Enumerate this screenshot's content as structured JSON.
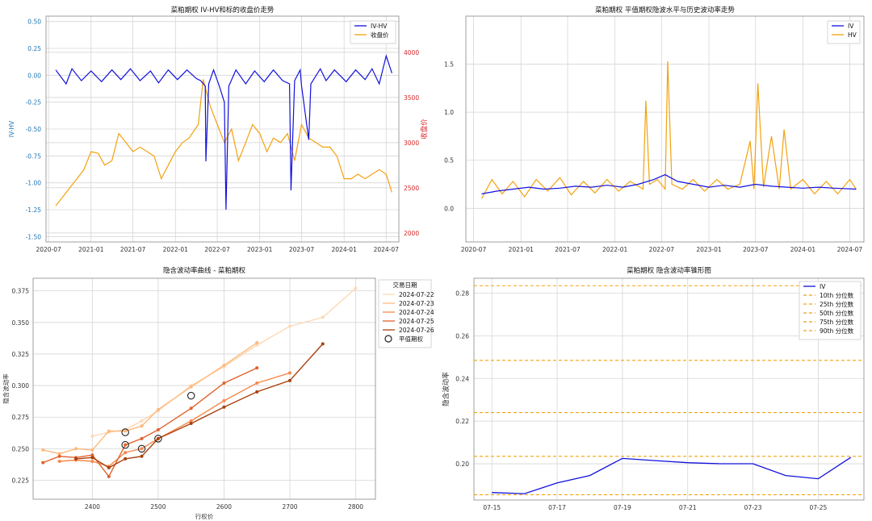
{
  "chart_data": [
    {
      "id": "iv_hv_close",
      "type": "line",
      "title": "菜粕期权 IV-HV和标的收盘价走势",
      "xlabel": "",
      "ylabel": "IV-HV",
      "ylabel_right": "收盘价",
      "x_ticks": [
        "2020-07",
        "2021-01",
        "2021-07",
        "2022-01",
        "2022-07",
        "2023-01",
        "2023-07",
        "2024-01",
        "2024-07"
      ],
      "y_ticks_left": [
        "0.50",
        "0.25",
        "0.00",
        "-0.25",
        "-0.50",
        "-0.75",
        "-1.00",
        "-1.25",
        "-1.50"
      ],
      "y_ticks_right": [
        "4000",
        "3500",
        "3000",
        "2500",
        "2000"
      ],
      "ylim_left": [
        -1.55,
        0.55
      ],
      "ylim_right": [
        1900,
        4400
      ],
      "grid": true,
      "legend": "top-right",
      "colors": {
        "left_axis": "#1f77b4",
        "right_axis": "#d62728"
      },
      "series": [
        {
          "name": "IV-HV",
          "axis": "left",
          "color": "#1111dd",
          "x": [
            "2020-08-01",
            "2020-09-15",
            "2020-10-10",
            "2020-11-20",
            "2021-01-01",
            "2021-02-15",
            "2021-04-01",
            "2021-05-10",
            "2021-06-20",
            "2021-08-01",
            "2021-09-15",
            "2021-10-20",
            "2021-12-01",
            "2022-01-10",
            "2022-02-20",
            "2022-04-01",
            "2022-04-20",
            "2022-05-10",
            "2022-05-13",
            "2022-05-25",
            "2022-06-15",
            "2022-07-10",
            "2022-08-01",
            "2022-08-08",
            "2022-08-20",
            "2022-09-20",
            "2022-11-01",
            "2022-12-10",
            "2023-01-20",
            "2023-03-01",
            "2023-04-10",
            "2023-05-10",
            "2023-05-16",
            "2023-06-01",
            "2023-06-25",
            "2023-07-01",
            "2023-08-01",
            "2023-08-10",
            "2023-09-20",
            "2023-10-15",
            "2023-11-20",
            "2024-01-10",
            "2024-02-20",
            "2024-04-01",
            "2024-05-01",
            "2024-06-01",
            "2024-07-01",
            "2024-07-26"
          ],
          "values": [
            0.05,
            -0.08,
            0.06,
            -0.05,
            0.04,
            -0.06,
            0.05,
            -0.04,
            0.06,
            -0.05,
            0.04,
            -0.07,
            0.05,
            -0.04,
            0.05,
            -0.03,
            -0.05,
            -0.1,
            -0.8,
            -0.08,
            0.05,
            -0.1,
            -0.25,
            -1.25,
            -0.1,
            0.05,
            -0.08,
            0.04,
            -0.06,
            0.05,
            -0.05,
            -0.08,
            -1.07,
            -0.05,
            0.05,
            -0.1,
            -0.6,
            -0.08,
            0.06,
            -0.05,
            0.05,
            -0.06,
            0.05,
            -0.04,
            0.06,
            -0.08,
            0.18,
            0.02
          ]
        },
        {
          "name": "收盘价",
          "axis": "right",
          "color": "#f2a20f",
          "x": [
            "2020-08-01",
            "2020-09-01",
            "2020-10-01",
            "2020-11-01",
            "2020-12-01",
            "2021-01-01",
            "2021-02-01",
            "2021-03-01",
            "2021-04-01",
            "2021-05-01",
            "2021-06-01",
            "2021-07-01",
            "2021-08-01",
            "2021-09-01",
            "2021-10-01",
            "2021-11-01",
            "2021-12-01",
            "2022-01-01",
            "2022-02-01",
            "2022-03-01",
            "2022-04-10",
            "2022-05-01",
            "2022-06-01",
            "2022-07-01",
            "2022-08-01",
            "2022-09-01",
            "2022-10-01",
            "2022-11-01",
            "2022-12-01",
            "2023-01-01",
            "2023-02-01",
            "2023-03-01",
            "2023-04-01",
            "2023-05-01",
            "2023-06-01",
            "2023-07-01",
            "2023-08-01",
            "2023-09-01",
            "2023-10-01",
            "2023-11-01",
            "2023-12-01",
            "2024-01-01",
            "2024-02-01",
            "2024-03-01",
            "2024-04-01",
            "2024-05-01",
            "2024-06-01",
            "2024-07-01",
            "2024-07-26"
          ],
          "values": [
            2300,
            2400,
            2500,
            2600,
            2700,
            2900,
            2880,
            2750,
            2800,
            3100,
            3000,
            2900,
            2950,
            2900,
            2850,
            2600,
            2750,
            2900,
            3000,
            3050,
            3200,
            3700,
            3400,
            3200,
            3000,
            3150,
            2800,
            3000,
            3200,
            3100,
            2900,
            3050,
            3000,
            3100,
            2800,
            3200,
            3050,
            3000,
            2950,
            2950,
            2850,
            2600,
            2600,
            2650,
            2600,
            2650,
            2700,
            2650,
            2450
          ]
        }
      ]
    },
    {
      "id": "atm_iv_hv",
      "type": "line",
      "title": "菜粕期权 平值期权隐波水平与历史波动率走势",
      "xlabel": "",
      "ylabel": "",
      "x_ticks": [
        "2020-07",
        "2021-01",
        "2021-07",
        "2022-01",
        "2022-07",
        "2023-01",
        "2023-07",
        "2024-01",
        "2024-07"
      ],
      "y_ticks": [
        "1.5",
        "1.0",
        "0.5",
        "0.0"
      ],
      "ylim": [
        -0.35,
        2.0
      ],
      "grid": true,
      "legend": "top-right",
      "series": [
        {
          "name": "IV",
          "color": "#1111dd",
          "x": [
            "2020-08-01",
            "2020-10-01",
            "2020-12-01",
            "2021-02-01",
            "2021-04-01",
            "2021-06-01",
            "2021-08-01",
            "2021-10-01",
            "2021-12-01",
            "2022-02-01",
            "2022-04-01",
            "2022-06-01",
            "2022-07-15",
            "2022-09-01",
            "2022-11-01",
            "2023-01-01",
            "2023-03-01",
            "2023-05-01",
            "2023-07-01",
            "2023-09-01",
            "2023-11-01",
            "2024-01-01",
            "2024-03-01",
            "2024-05-01",
            "2024-07-26"
          ],
          "values": [
            0.15,
            0.18,
            0.2,
            0.22,
            0.2,
            0.21,
            0.23,
            0.22,
            0.24,
            0.22,
            0.25,
            0.3,
            0.35,
            0.28,
            0.25,
            0.22,
            0.24,
            0.22,
            0.25,
            0.23,
            0.22,
            0.21,
            0.22,
            0.21,
            0.2
          ]
        },
        {
          "name": "HV",
          "color": "#f2a20f",
          "x": [
            "2020-08-01",
            "2020-09-10",
            "2020-10-20",
            "2020-12-01",
            "2021-01-15",
            "2021-03-01",
            "2021-04-15",
            "2021-06-01",
            "2021-07-15",
            "2021-09-01",
            "2021-10-15",
            "2021-12-01",
            "2022-01-15",
            "2022-03-01",
            "2022-04-20",
            "2022-05-01",
            "2022-05-15",
            "2022-06-15",
            "2022-07-15",
            "2022-07-25",
            "2022-08-10",
            "2022-09-20",
            "2022-11-01",
            "2022-12-15",
            "2023-02-01",
            "2023-03-15",
            "2023-05-01",
            "2023-06-10",
            "2023-06-25",
            "2023-07-10",
            "2023-08-01",
            "2023-09-01",
            "2023-10-01",
            "2023-10-20",
            "2023-11-15",
            "2024-01-01",
            "2024-02-15",
            "2024-04-01",
            "2024-05-15",
            "2024-07-01",
            "2024-07-26"
          ],
          "values": [
            0.1,
            0.3,
            0.15,
            0.28,
            0.12,
            0.3,
            0.18,
            0.32,
            0.14,
            0.28,
            0.16,
            0.3,
            0.18,
            0.28,
            0.2,
            1.12,
            0.25,
            0.3,
            0.2,
            1.53,
            0.25,
            0.2,
            0.3,
            0.18,
            0.3,
            0.2,
            0.25,
            0.7,
            0.2,
            1.3,
            0.22,
            0.75,
            0.2,
            0.82,
            0.2,
            0.3,
            0.15,
            0.28,
            0.15,
            0.3,
            0.2
          ]
        }
      ]
    },
    {
      "id": "iv_smile",
      "type": "line",
      "title": "隐含波动率曲线 - 菜粕期权",
      "xlabel": "行权价",
      "ylabel": "隐含波动率",
      "x_ticks": [
        "2400",
        "2500",
        "2600",
        "2700",
        "2800"
      ],
      "y_ticks": [
        "0.375",
        "0.350",
        "0.325",
        "0.300",
        "0.275",
        "0.250",
        "0.225"
      ],
      "xlim": [
        2310,
        2830
      ],
      "ylim": [
        0.21,
        0.385
      ],
      "grid": true,
      "legend": "right",
      "legend_title": "交易日期",
      "atm_marker_label": "平值期权",
      "x": [
        2325,
        2350,
        2375,
        2400,
        2425,
        2450,
        2475,
        2500,
        2550,
        2600,
        2650,
        2700,
        2750,
        2800
      ],
      "series": [
        {
          "name": "2024-07-22",
          "color": "#fdd9b5",
          "values": [
            null,
            null,
            null,
            0.26,
            0.263,
            0.265,
            0.272,
            0.28,
            0.3,
            0.315,
            0.332,
            0.347,
            0.354,
            0.377
          ]
        },
        {
          "name": "2024-07-23",
          "color": "#fdb97d",
          "values": [
            0.249,
            0.246,
            0.25,
            0.249,
            0.264,
            0.264,
            0.268,
            0.281,
            0.299,
            0.316,
            0.334,
            null,
            null,
            null
          ]
        },
        {
          "name": "2024-07-24",
          "color": "#f5884a",
          "values": [
            null,
            0.24,
            0.241,
            0.24,
            0.236,
            0.247,
            0.25,
            0.258,
            0.272,
            0.288,
            0.302,
            0.31,
            null,
            null
          ]
        },
        {
          "name": "2024-07-25",
          "color": "#e0622b",
          "values": [
            0.239,
            0.244,
            0.243,
            0.245,
            0.228,
            0.253,
            0.258,
            0.265,
            0.282,
            0.302,
            0.314,
            null,
            null,
            null
          ]
        },
        {
          "name": "2024-07-26",
          "color": "#a8410f",
          "values": [
            null,
            null,
            0.242,
            0.243,
            0.235,
            0.242,
            0.244,
            0.258,
            0.27,
            0.283,
            0.295,
            0.304,
            0.333,
            null
          ]
        }
      ],
      "atm_points": [
        [
          2450,
          0.263
        ],
        [
          2450,
          0.253
        ],
        [
          2475,
          0.25
        ],
        [
          2500,
          0.258
        ],
        [
          2550,
          0.292
        ]
      ]
    },
    {
      "id": "iv_cone",
      "type": "line",
      "title": "菜粕期权 隐含波动率锥形图",
      "xlabel": "",
      "ylabel": "隐含波动率",
      "x_ticks": [
        "07-15",
        "07-17",
        "07-19",
        "07-21",
        "07-23",
        "07-25"
      ],
      "y_ticks": [
        "0.28",
        "0.26",
        "0.24",
        "0.22",
        "0.20"
      ],
      "ylim": [
        0.183,
        0.287
      ],
      "grid": true,
      "legend": "top-right",
      "x": [
        "07-15",
        "07-16",
        "07-17",
        "07-18",
        "07-19",
        "07-20",
        "07-21",
        "07-22",
        "07-23",
        "07-24",
        "07-25",
        "07-26"
      ],
      "series": [
        {
          "name": "IV",
          "color": "#1111dd",
          "values": [
            0.1865,
            0.186,
            0.191,
            0.1945,
            0.2025,
            0.2015,
            0.2005,
            0.2,
            0.2,
            0.1945,
            0.193,
            0.203
          ]
        }
      ],
      "percentiles": [
        {
          "name": "10th 分位数",
          "value": 0.1855,
          "color": "#f2a20f"
        },
        {
          "name": "25th 分位数",
          "value": 0.2035,
          "color": "#f2a20f"
        },
        {
          "name": "50th 分位数",
          "value": 0.224,
          "color": "#f2a20f"
        },
        {
          "name": "75th 分位数",
          "value": 0.2485,
          "color": "#f2a20f"
        },
        {
          "name": "90th 分位数",
          "value": 0.2835,
          "color": "#f2a20f"
        }
      ]
    }
  ]
}
